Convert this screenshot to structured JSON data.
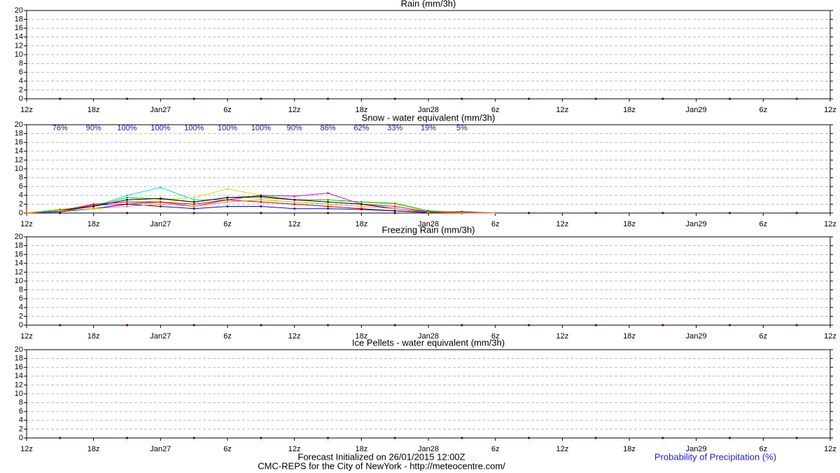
{
  "chart_data": [
    {
      "type": "line",
      "title": "Rain (mm/3h)",
      "xlim": [
        0,
        72
      ],
      "ylim": [
        0,
        20
      ],
      "yticks": [
        0,
        2,
        4,
        6,
        8,
        10,
        12,
        14,
        16,
        18,
        20
      ],
      "xticks": [
        {
          "value": 0,
          "label": "12z"
        },
        {
          "value": 6,
          "label": "18z"
        },
        {
          "value": 12,
          "label": "Jan27"
        },
        {
          "value": 18,
          "label": "6z"
        },
        {
          "value": 24,
          "label": "12z"
        },
        {
          "value": 30,
          "label": "18z"
        },
        {
          "value": 36,
          "label": "Jan28"
        },
        {
          "value": 42,
          "label": "6z"
        },
        {
          "value": 48,
          "label": "12z"
        },
        {
          "value": 54,
          "label": "18z"
        },
        {
          "value": 60,
          "label": "Jan29"
        },
        {
          "value": 66,
          "label": "6z"
        },
        {
          "value": 72,
          "label": "12z"
        }
      ],
      "grid": true
    },
    {
      "type": "line",
      "title": "Snow - water equivalent (mm/3h)",
      "xlim": [
        0,
        72
      ],
      "ylim": [
        0,
        20
      ],
      "yticks": [
        0,
        2,
        4,
        6,
        8,
        10,
        12,
        14,
        16,
        18,
        20
      ],
      "xticks": [
        {
          "value": 0,
          "label": "12z"
        },
        {
          "value": 6,
          "label": "18z"
        },
        {
          "value": 12,
          "label": "Jan27"
        },
        {
          "value": 18,
          "label": "6z"
        },
        {
          "value": 24,
          "label": "12z"
        },
        {
          "value": 30,
          "label": "18z"
        },
        {
          "value": 36,
          "label": "Jan28"
        },
        {
          "value": 42,
          "label": "6z"
        },
        {
          "value": 48,
          "label": "12z"
        },
        {
          "value": 54,
          "label": "18z"
        },
        {
          "value": 60,
          "label": "Jan29"
        },
        {
          "value": 66,
          "label": "6z"
        },
        {
          "value": 72,
          "label": "12z"
        }
      ],
      "grid": true,
      "x": [
        0,
        3,
        6,
        9,
        12,
        15,
        18,
        21,
        24,
        27,
        30,
        33,
        36,
        39,
        42
      ],
      "series": [
        {
          "color": "#00e0e0",
          "values": [
            0,
            0.5,
            1.5,
            4,
            5.8,
            3,
            3,
            2.5,
            2,
            1.5,
            1,
            0.5,
            0.2,
            0.1,
            0
          ]
        },
        {
          "color": "#e0e000",
          "values": [
            0,
            0.5,
            1,
            2,
            3,
            3.5,
            5.5,
            4,
            3,
            3,
            2.5,
            2,
            0.5,
            0.2,
            0
          ]
        },
        {
          "color": "#e000e0",
          "values": [
            0,
            0.5,
            1.8,
            2,
            2.5,
            1.5,
            3,
            4,
            3.8,
            4.5,
            2,
            1.5,
            0.3,
            0.1,
            0
          ]
        },
        {
          "color": "#00c000",
          "values": [
            0,
            0.8,
            1.5,
            3.5,
            3.2,
            2.5,
            3.5,
            3.5,
            3,
            3,
            2.5,
            2.2,
            0.5,
            0.1,
            0
          ]
        },
        {
          "color": "#000000",
          "values": [
            0,
            0.5,
            1.5,
            3,
            3.3,
            2.5,
            3.5,
            3.8,
            3,
            2.5,
            2,
            1,
            0.3,
            0,
            0
          ]
        },
        {
          "color": "#e00000",
          "values": [
            0,
            0.5,
            2,
            2.5,
            2.5,
            2,
            3,
            2.5,
            2,
            1.5,
            1,
            0.5,
            0.2,
            0,
            0
          ]
        },
        {
          "color": "#0000e0",
          "values": [
            0,
            0.3,
            1,
            2,
            1.5,
            1,
            1.5,
            1.5,
            1,
            1,
            0.8,
            0.5,
            0.1,
            0.3,
            0
          ]
        },
        {
          "color": "#ff9900",
          "values": [
            0,
            0.5,
            1,
            1.5,
            2,
            1.5,
            2.5,
            3,
            2.5,
            2,
            1.5,
            1,
            0.2,
            0.1,
            0
          ]
        }
      ],
      "pop": {
        "color": "#2020c0",
        "x": [
          3,
          6,
          9,
          12,
          15,
          18,
          21,
          24,
          27,
          30,
          33,
          36,
          39
        ],
        "values": [
          76,
          90,
          100,
          100,
          100,
          100,
          100,
          90,
          86,
          62,
          33,
          19,
          5
        ],
        "value_labels": [
          "76%",
          "90%",
          "100%",
          "100%",
          "100%",
          "100%",
          "100%",
          "90%",
          "86%",
          "62%",
          "33%",
          "19%",
          "5%"
        ]
      }
    },
    {
      "type": "line",
      "title": "Freezing Rain (mm/3h)",
      "xlim": [
        0,
        72
      ],
      "ylim": [
        0,
        20
      ],
      "yticks": [
        0,
        2,
        4,
        6,
        8,
        10,
        12,
        14,
        16,
        18,
        20
      ],
      "xticks": [
        {
          "value": 0,
          "label": "12z"
        },
        {
          "value": 6,
          "label": "18z"
        },
        {
          "value": 12,
          "label": "Jan27"
        },
        {
          "value": 18,
          "label": "6z"
        },
        {
          "value": 24,
          "label": "12z"
        },
        {
          "value": 30,
          "label": "18z"
        },
        {
          "value": 36,
          "label": "Jan28"
        },
        {
          "value": 42,
          "label": "6z"
        },
        {
          "value": 48,
          "label": "12z"
        },
        {
          "value": 54,
          "label": "18z"
        },
        {
          "value": 60,
          "label": "Jan29"
        },
        {
          "value": 66,
          "label": "6z"
        },
        {
          "value": 72,
          "label": "12z"
        }
      ],
      "grid": true
    },
    {
      "type": "line",
      "title": "Ice Pellets - water equivalent (mm/3h)",
      "xlim": [
        0,
        72
      ],
      "ylim": [
        0,
        20
      ],
      "yticks": [
        0,
        2,
        4,
        6,
        8,
        10,
        12,
        14,
        16,
        18,
        20
      ],
      "xticks": [
        {
          "value": 0,
          "label": "12z"
        },
        {
          "value": 6,
          "label": "18z"
        },
        {
          "value": 12,
          "label": "Jan27"
        },
        {
          "value": 18,
          "label": "6z"
        },
        {
          "value": 24,
          "label": "12z"
        },
        {
          "value": 30,
          "label": "18z"
        },
        {
          "value": 36,
          "label": "Jan28"
        },
        {
          "value": 42,
          "label": "6z"
        },
        {
          "value": 48,
          "label": "12z"
        },
        {
          "value": 54,
          "label": "18z"
        },
        {
          "value": 60,
          "label": "Jan29"
        },
        {
          "value": 66,
          "label": "6z"
        },
        {
          "value": 72,
          "label": "12z"
        }
      ],
      "grid": true
    }
  ],
  "footer": {
    "line1": "Forecast Initialized on 26/01/2015 12:00Z",
    "line2": "CMC-REPS for the City of NewYork - http://meteocentre.com/",
    "legend": "Probability of Precipitation (%)"
  }
}
